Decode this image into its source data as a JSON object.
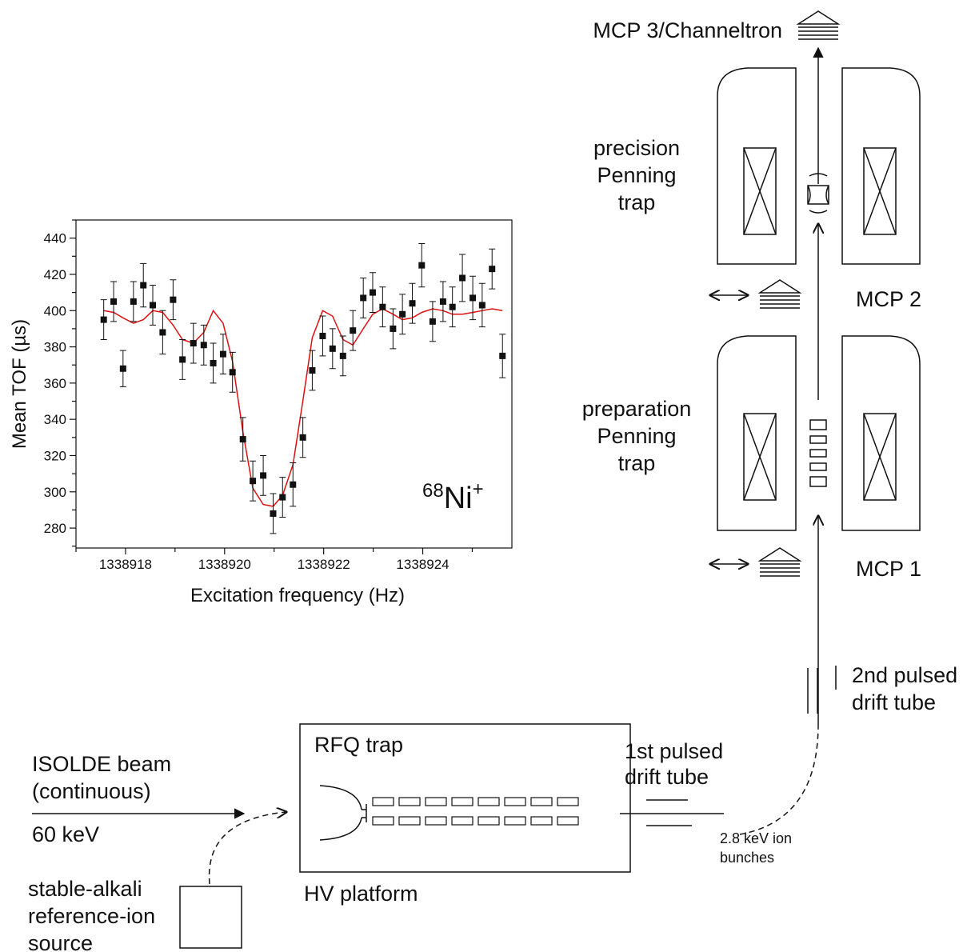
{
  "chart_data": {
    "type": "scatter",
    "x_label": "Excitation frequency (Hz)",
    "y_label": "Mean TOF (µs)",
    "annotation": {
      "mass": "68",
      "element": "Ni",
      "charge": "+"
    },
    "x": [
      1338917.56,
      1338917.76,
      1338917.95,
      1338918.16,
      1338918.36,
      1338918.55,
      1338918.75,
      1338918.96,
      1338919.15,
      1338919.37,
      1338919.58,
      1338919.77,
      1338919.97,
      1338920.16,
      1338920.37,
      1338920.57,
      1338920.78,
      1338920.98,
      1338921.17,
      1338921.38,
      1338921.58,
      1338921.77,
      1338921.98,
      1338922.18,
      1338922.39,
      1338922.59,
      1338922.8,
      1338922.99,
      1338923.19,
      1338923.4,
      1338923.59,
      1338923.79,
      1338923.98,
      1338924.2,
      1338924.41,
      1338924.6,
      1338924.8,
      1338925.01,
      1338925.2,
      1338925.4,
      1338925.61
    ],
    "series": [
      {
        "color": "#111111",
        "values": [
          395,
          405,
          368,
          405,
          414,
          403,
          388,
          406,
          373,
          382,
          381,
          371,
          376,
          366,
          329,
          306,
          309,
          288,
          297,
          304,
          330,
          367,
          386,
          379,
          375,
          389,
          407,
          410,
          402,
          390,
          398,
          404,
          425,
          394,
          405,
          402,
          418,
          407,
          403,
          423,
          375
        ],
        "errors": [
          11,
          11,
          10,
          11,
          12,
          11,
          12,
          11,
          11,
          11,
          11,
          11,
          11,
          11,
          12,
          11,
          11,
          11,
          11,
          12,
          11,
          11,
          11,
          11,
          11,
          11,
          11,
          11,
          11,
          11,
          11,
          11,
          12,
          11,
          11,
          11,
          13,
          12,
          12,
          11,
          12
        ]
      },
      {
        "color": "#dd1111",
        "values": [
          400,
          399,
          396,
          393,
          395,
          400,
          399,
          392,
          384,
          382,
          388,
          400,
          393,
          372,
          333,
          302,
          293,
          292,
          298,
          315,
          350,
          385,
          400,
          397,
          384,
          381,
          390,
          398,
          401,
          398,
          395,
          396,
          399,
          401,
          400,
          398,
          398,
          399,
          400,
          401,
          400
        ]
      }
    ],
    "xlim": [
      1338917,
      1338925.8
    ],
    "ylim": [
      269,
      450
    ],
    "xticks": [
      1338918,
      1338920,
      1338922,
      1338924
    ],
    "xminorticks": [
      1338917,
      1338919,
      1338921,
      1338923,
      1338925
    ],
    "yticks": [
      280,
      300,
      320,
      340,
      360,
      380,
      400,
      420,
      440
    ],
    "yminorticks": [
      270,
      290,
      310,
      330,
      350,
      370,
      390,
      410,
      430,
      450
    ]
  },
  "labels": {
    "mcp3": "MCP 3/Channeltron",
    "precision_trap": [
      "precision",
      "Penning",
      "trap"
    ],
    "mcp2": "MCP 2",
    "preparation_trap": [
      "preparation",
      "Penning",
      "trap"
    ],
    "mcp1": "MCP 1",
    "drift_tube_2": [
      "2nd pulsed",
      "drift tube"
    ],
    "rfq": "RFQ trap",
    "drift_tube_1": [
      "1st pulsed",
      "drift tube"
    ],
    "isolde": [
      "ISOLDE beam",
      "(continuous)"
    ],
    "energy": "60 keV",
    "bunches": [
      "2.8 keV ion",
      "bunches"
    ],
    "source": [
      "stable-alkali",
      "reference-ion",
      "source"
    ],
    "platform": "HV platform"
  }
}
